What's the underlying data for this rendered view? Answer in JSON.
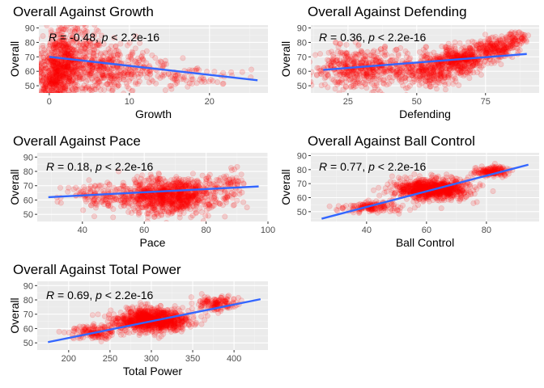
{
  "chart_data": [
    {
      "type": "scatter",
      "title": "Overall Against Growth",
      "xlabel": "Growth",
      "ylabel": "Overall",
      "xlim": [
        -1.3,
        27.3
      ],
      "ylim": [
        45,
        92
      ],
      "xticks": [
        0,
        10,
        20
      ],
      "yticks": [
        50,
        60,
        70,
        80,
        90
      ],
      "grid": true,
      "annotation": {
        "R": "-0.48",
        "p": "< 2.2e-16"
      },
      "fit_line": {
        "x": [
          0,
          26
        ],
        "y": [
          70,
          53.8
        ]
      },
      "point_color": "#ff0000",
      "line_color": "#3366ff",
      "cloud": [
        {
          "x": 0,
          "y": 47,
          "w": 1.2,
          "h": 12,
          "n": 60
        },
        {
          "x": 1,
          "y": 58,
          "w": 2.2,
          "h": 20,
          "n": 340
        },
        {
          "x": 2,
          "y": 68,
          "w": 3.2,
          "h": 26,
          "n": 420
        },
        {
          "x": 6,
          "y": 64,
          "w": 4.4,
          "h": 16,
          "n": 300
        },
        {
          "x": 10,
          "y": 60,
          "w": 5,
          "h": 14,
          "n": 160
        },
        {
          "x": 18,
          "y": 56,
          "w": 5,
          "h": 8,
          "n": 70
        },
        {
          "x": 3,
          "y": 88,
          "w": 3,
          "h": 3,
          "n": 25
        }
      ]
    },
    {
      "type": "scatter",
      "title": "Overall Against Defending",
      "xlabel": "Defending",
      "ylabel": "Overall",
      "xlim": [
        11.5,
        94.5
      ],
      "ylim": [
        45,
        92
      ],
      "xticks": [
        25,
        50,
        75
      ],
      "yticks": [
        50,
        60,
        70,
        80,
        90
      ],
      "grid": true,
      "annotation": {
        "R": "0.36",
        "p": "< 2.2e-16"
      },
      "fit_line": {
        "x": [
          16,
          90
        ],
        "y": [
          61,
          72
        ]
      },
      "point_color": "#ff0000",
      "line_color": "#3366ff",
      "cloud": [
        {
          "x": 30,
          "y": 62,
          "w": 16,
          "h": 14,
          "n": 500
        },
        {
          "x": 55,
          "y": 60,
          "w": 10,
          "h": 11,
          "n": 300
        },
        {
          "x": 66,
          "y": 68,
          "w": 9,
          "h": 9,
          "n": 380
        },
        {
          "x": 78,
          "y": 76,
          "w": 7,
          "h": 7,
          "n": 220
        },
        {
          "x": 86,
          "y": 83,
          "w": 4,
          "h": 5,
          "n": 60
        }
      ]
    },
    {
      "type": "scatter",
      "title": "Overall Against Pace",
      "xlabel": "Pace",
      "ylabel": "Overall",
      "xlim": [
        25.4,
        100
      ],
      "ylim": [
        45,
        93
      ],
      "xticks": [
        40,
        60,
        80,
        100
      ],
      "yticks": [
        50,
        60,
        70,
        80,
        90
      ],
      "grid": true,
      "annotation": {
        "R": "0.18",
        "p": "< 2.2e-16"
      },
      "fit_line": {
        "x": [
          29,
          97
        ],
        "y": [
          62,
          69.5
        ]
      },
      "point_color": "#ff0000",
      "line_color": "#3366ff",
      "cloud": [
        {
          "x": 68,
          "y": 63,
          "w": 14,
          "h": 12,
          "n": 1000
        },
        {
          "x": 45,
          "y": 62,
          "w": 10,
          "h": 9,
          "n": 120
        },
        {
          "x": 88,
          "y": 72,
          "w": 4,
          "h": 9,
          "n": 60
        }
      ]
    },
    {
      "type": "scatter",
      "title": "Overall Against Ball Control",
      "xlabel": "Ball Control",
      "ylabel": "Overall",
      "xlim": [
        21.4,
        97.6
      ],
      "ylim": [
        43,
        92
      ],
      "xticks": [
        40,
        60,
        80
      ],
      "yticks": [
        50,
        60,
        70,
        80,
        90
      ],
      "grid": true,
      "annotation": {
        "R": "0.77",
        "p": "< 2.2e-16"
      },
      "fit_line": {
        "x": [
          25,
          94
        ],
        "y": [
          45,
          83.5
        ]
      },
      "point_color": "#ff0000",
      "line_color": "#3366ff",
      "cloud": [
        {
          "x": 62,
          "y": 66,
          "w": 11,
          "h": 7,
          "n": 900
        },
        {
          "x": 42,
          "y": 53,
          "w": 9,
          "h": 4,
          "n": 160
        },
        {
          "x": 82,
          "y": 79,
          "w": 5,
          "h": 4,
          "n": 160
        }
      ]
    },
    {
      "type": "scatter",
      "title": "Overall Against Total Power",
      "xlabel": "Total Power",
      "ylabel": "Overall",
      "xlim": [
        162,
        441
      ],
      "ylim": [
        45,
        93
      ],
      "xticks": [
        200,
        250,
        300,
        350,
        400
      ],
      "yticks": [
        50,
        60,
        70,
        80,
        90
      ],
      "grid": true,
      "annotation": {
        "R": "0.69",
        "p": "< 2.2e-16"
      },
      "fit_line": {
        "x": [
          175,
          432
        ],
        "y": [
          50.5,
          80.5
        ]
      },
      "point_color": "#ff0000",
      "line_color": "#3366ff",
      "cloud": [
        {
          "x": 300,
          "y": 66,
          "w": 40,
          "h": 8,
          "n": 950
        },
        {
          "x": 230,
          "y": 58,
          "w": 25,
          "h": 5,
          "n": 150
        },
        {
          "x": 380,
          "y": 77,
          "w": 22,
          "h": 5,
          "n": 140
        }
      ]
    }
  ]
}
